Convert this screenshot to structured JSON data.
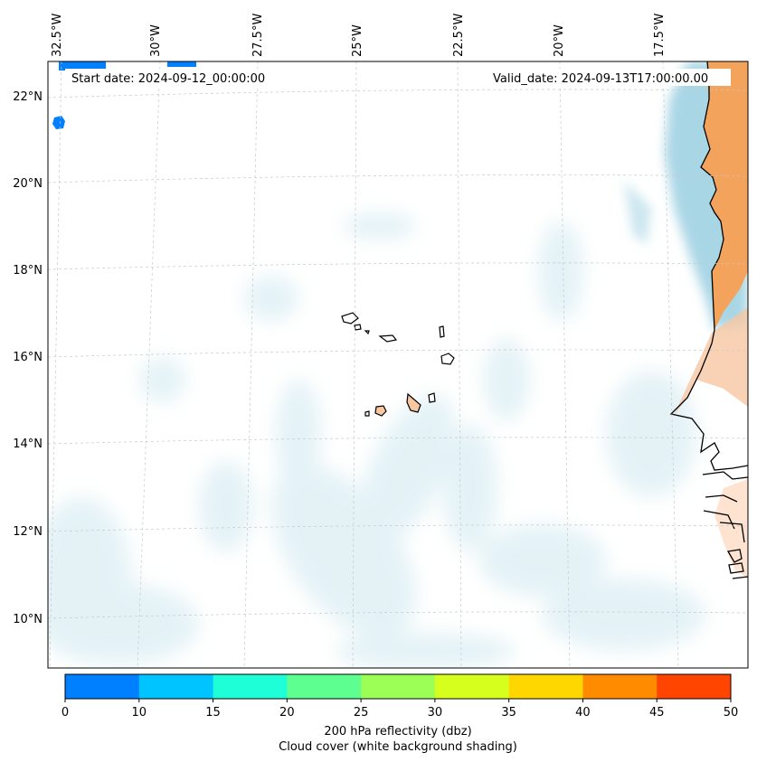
{
  "map": {
    "start_label": "Start date: 2024-09-12_00:00:00",
    "valid_label": "Valid_date: 2024-09-13T17:00:00.00",
    "lon_labels": [
      "32.5°W",
      "30°W",
      "27.5°W",
      "25°W",
      "22.5°W",
      "20°W",
      "17.5°W"
    ],
    "lat_labels": [
      "22°N",
      "20°N",
      "18°N",
      "16°N",
      "14°N",
      "12°N",
      "10°N"
    ]
  },
  "colorbar": {
    "ticks": [
      "0",
      "10",
      "15",
      "20",
      "25",
      "30",
      "35",
      "40",
      "45",
      "50"
    ],
    "colors": [
      "#0080ff",
      "#00c4ff",
      "#1effd8",
      "#5cff90",
      "#9cff56",
      "#d6ff1e",
      "#ffd700",
      "#ff8c00",
      "#ff4500"
    ],
    "label_line1": "200 hPa reflectivity (dbz)",
    "label_line2": "Cloud cover (white background shading)"
  },
  "colors": {
    "land_orange": "#f4a35c",
    "land_peach": "#f8c7a2",
    "cloud_blue": "#a9d6e5",
    "reflectivity_blue": "#0080ff"
  }
}
